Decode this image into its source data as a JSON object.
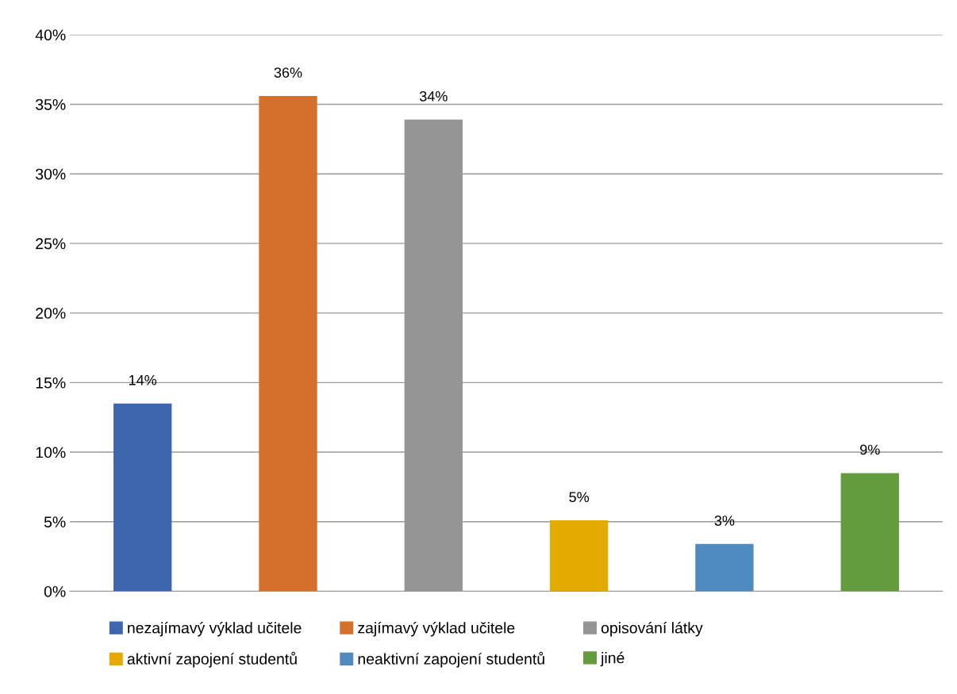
{
  "chart_data": {
    "type": "bar",
    "categories": [
      null,
      null,
      null,
      null,
      null,
      null
    ],
    "series": [
      {
        "name": "nezajímavý výklad učitele",
        "color": "#3d66ae",
        "values": [
          13.5,
          null,
          null,
          null,
          null,
          null
        ],
        "value_labels": [
          "14%",
          null,
          null,
          null,
          null,
          null
        ]
      },
      {
        "name": "zajímavý výklad učitele",
        "color": "#d4702c",
        "values": [
          null,
          35.6,
          null,
          null,
          null,
          null
        ],
        "value_labels": [
          null,
          "36%",
          null,
          null,
          null,
          null
        ]
      },
      {
        "name": "opisování látky",
        "color": "#959595",
        "values": [
          null,
          null,
          33.9,
          null,
          null,
          null
        ],
        "value_labels": [
          null,
          null,
          "34%",
          null,
          null,
          null
        ]
      },
      {
        "name": "aktivní zapojení studentů",
        "color": "#e3aa00",
        "values": [
          null,
          null,
          null,
          5.1,
          null,
          null
        ],
        "value_labels": [
          null,
          null,
          null,
          "5%",
          null,
          null
        ]
      },
      {
        "name": "neaktivní zapojení studentů",
        "color": "#4f8ac0",
        "values": [
          null,
          null,
          null,
          null,
          3.4,
          null
        ],
        "value_labels": [
          null,
          null,
          null,
          null,
          "3%",
          null
        ]
      },
      {
        "name": "jiné",
        "color": "#639b3f",
        "values": [
          null,
          null,
          null,
          null,
          null,
          8.5
        ],
        "value_labels": [
          null,
          null,
          null,
          null,
          null,
          "9%"
        ]
      }
    ],
    "ylim": [
      0,
      40
    ],
    "yticks": [
      {
        "value": 0,
        "label": "0%"
      },
      {
        "value": 5,
        "label": "5%"
      },
      {
        "value": 10,
        "label": "10%"
      },
      {
        "value": 15,
        "label": "15%"
      },
      {
        "value": 20,
        "label": "20%"
      },
      {
        "value": 25,
        "label": "25%"
      },
      {
        "value": 30,
        "label": "30%"
      },
      {
        "value": 35,
        "label": "35%"
      },
      {
        "value": 40,
        "label": "40%"
      }
    ],
    "grid": "y",
    "legend": "bottom"
  }
}
